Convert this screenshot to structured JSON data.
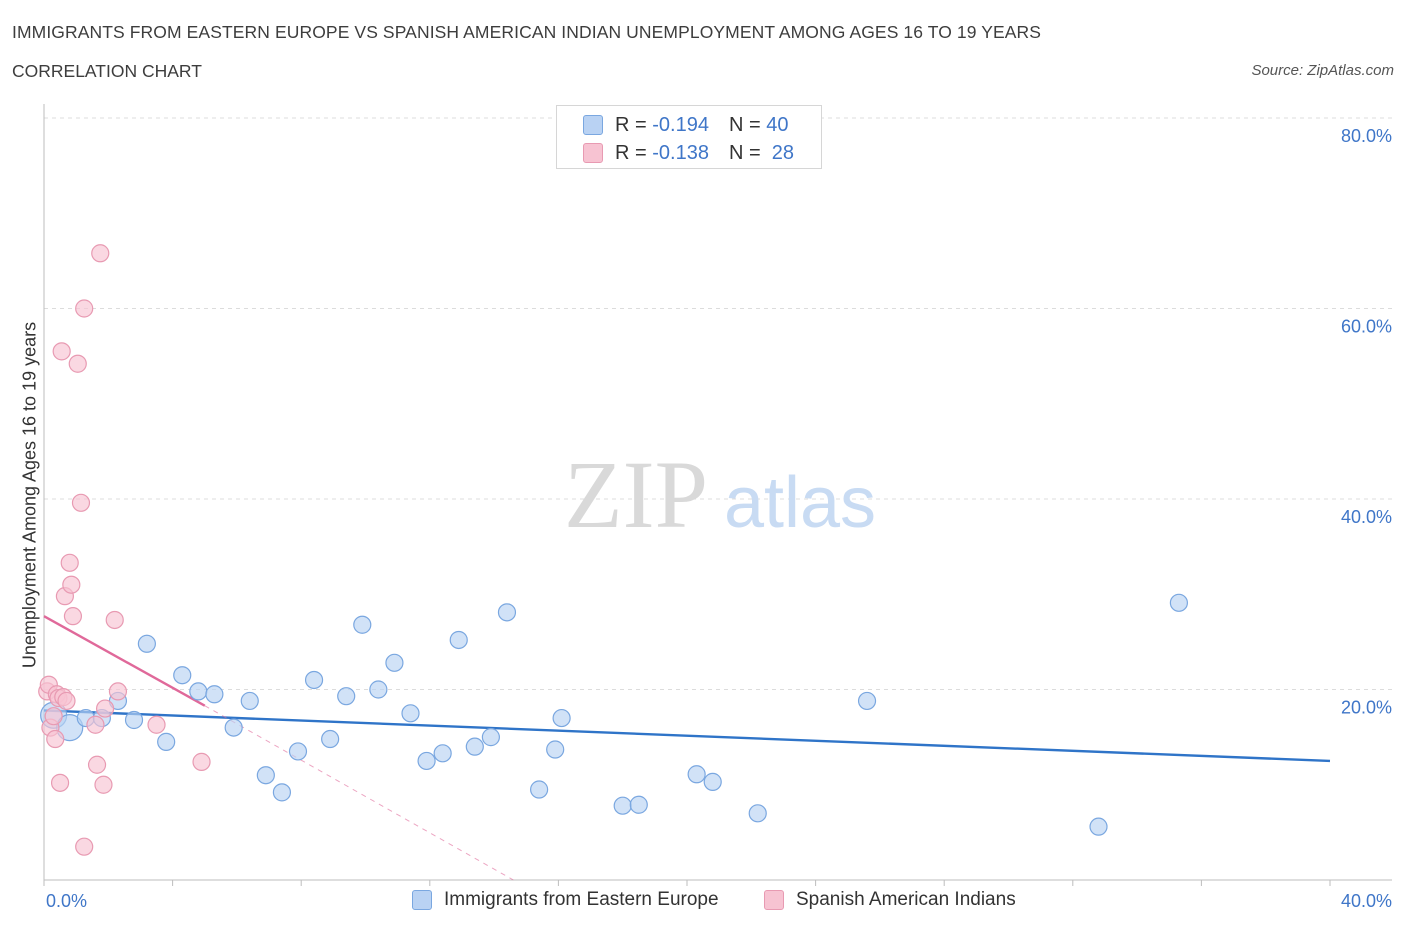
{
  "header": {
    "title": "IMMIGRANTS FROM EASTERN EUROPE VS SPANISH AMERICAN INDIAN UNEMPLOYMENT AMONG AGES 16 TO 19 YEARS",
    "subtitle": "CORRELATION CHART",
    "source": "Source: ZipAtlas.com"
  },
  "watermark": {
    "zip": "ZIP",
    "atlas": "atlas"
  },
  "legend": {
    "r_label": "R =",
    "n_label": "N =",
    "series1": {
      "r": "-0.194",
      "n": "40"
    },
    "series2": {
      "r": "-0.138",
      "n": "28"
    }
  },
  "colors": {
    "blue_fill": "#b9d2f3",
    "blue_stroke": "#7aa7e0",
    "blue_line": "#2f74c8",
    "pink_fill": "#f7c3d2",
    "pink_stroke": "#e89ab2",
    "pink_line": "#e0699a",
    "grid": "#dcdcdc",
    "axis_text": "#3f76c8"
  },
  "chart_data": {
    "type": "scatter",
    "title": "Immigrants from Eastern Europe vs Spanish American Indian Unemployment Among Ages 16 to 19 years",
    "xlabel": "",
    "ylabel": "Unemployment Among Ages 16 to 19 years",
    "xlim": [
      0,
      40
    ],
    "ylim": [
      0,
      80
    ],
    "x_tick_labels": [
      "0.0%",
      "40.0%"
    ],
    "y_ticks": [
      20,
      40,
      60,
      80
    ],
    "y_tick_labels": [
      "20.0%",
      "40.0%",
      "60.0%",
      "80.0%"
    ],
    "grid": true,
    "legend_position": "top-center",
    "series": [
      {
        "name": "Immigrants from Eastern Europe",
        "points": [
          {
            "x": 0.3,
            "y": 17.3,
            "big": true
          },
          {
            "x": 0.8,
            "y": 16.0,
            "big": true
          },
          {
            "x": 1.3,
            "y": 17.0
          },
          {
            "x": 1.8,
            "y": 17.0
          },
          {
            "x": 2.3,
            "y": 18.8
          },
          {
            "x": 2.8,
            "y": 16.8
          },
          {
            "x": 3.2,
            "y": 24.8
          },
          {
            "x": 3.8,
            "y": 14.5
          },
          {
            "x": 4.3,
            "y": 21.5
          },
          {
            "x": 4.8,
            "y": 19.8
          },
          {
            "x": 5.3,
            "y": 19.5
          },
          {
            "x": 5.9,
            "y": 16.0
          },
          {
            "x": 6.4,
            "y": 18.8
          },
          {
            "x": 6.9,
            "y": 11.0
          },
          {
            "x": 7.4,
            "y": 9.2
          },
          {
            "x": 7.9,
            "y": 13.5
          },
          {
            "x": 8.4,
            "y": 21.0
          },
          {
            "x": 8.9,
            "y": 14.8
          },
          {
            "x": 9.4,
            "y": 19.3
          },
          {
            "x": 9.9,
            "y": 26.8
          },
          {
            "x": 10.4,
            "y": 20.0
          },
          {
            "x": 10.9,
            "y": 22.8
          },
          {
            "x": 11.4,
            "y": 17.5
          },
          {
            "x": 11.9,
            "y": 12.5
          },
          {
            "x": 12.4,
            "y": 13.3
          },
          {
            "x": 12.9,
            "y": 25.2
          },
          {
            "x": 13.4,
            "y": 14.0
          },
          {
            "x": 13.9,
            "y": 15.0
          },
          {
            "x": 14.4,
            "y": 28.1
          },
          {
            "x": 15.4,
            "y": 9.5
          },
          {
            "x": 15.9,
            "y": 13.7
          },
          {
            "x": 16.1,
            "y": 17.0
          },
          {
            "x": 18.0,
            "y": 7.8
          },
          {
            "x": 18.5,
            "y": 7.9
          },
          {
            "x": 20.3,
            "y": 11.1
          },
          {
            "x": 20.8,
            "y": 10.3
          },
          {
            "x": 22.2,
            "y": 7.0
          },
          {
            "x": 25.6,
            "y": 18.8
          },
          {
            "x": 32.8,
            "y": 5.6
          },
          {
            "x": 35.3,
            "y": 29.1
          }
        ]
      },
      {
        "name": "Spanish American Indians",
        "points": [
          {
            "x": 0.1,
            "y": 19.8
          },
          {
            "x": 0.15,
            "y": 20.5
          },
          {
            "x": 0.2,
            "y": 16.0
          },
          {
            "x": 0.3,
            "y": 17.2
          },
          {
            "x": 0.35,
            "y": 14.8
          },
          {
            "x": 0.4,
            "y": 19.5
          },
          {
            "x": 0.45,
            "y": 19.1
          },
          {
            "x": 0.5,
            "y": 10.2
          },
          {
            "x": 0.55,
            "y": 55.5
          },
          {
            "x": 0.6,
            "y": 19.2
          },
          {
            "x": 0.65,
            "y": 29.8
          },
          {
            "x": 0.7,
            "y": 18.8
          },
          {
            "x": 0.8,
            "y": 33.3
          },
          {
            "x": 0.85,
            "y": 31.0
          },
          {
            "x": 0.9,
            "y": 27.7
          },
          {
            "x": 1.05,
            "y": 54.2
          },
          {
            "x": 1.15,
            "y": 39.6
          },
          {
            "x": 1.25,
            "y": 60.0
          },
          {
            "x": 1.25,
            "y": 3.5
          },
          {
            "x": 1.6,
            "y": 16.3
          },
          {
            "x": 1.65,
            "y": 12.1
          },
          {
            "x": 1.75,
            "y": 65.8
          },
          {
            "x": 1.85,
            "y": 10.0
          },
          {
            "x": 1.9,
            "y": 18.0
          },
          {
            "x": 2.2,
            "y": 27.3
          },
          {
            "x": 2.3,
            "y": 19.8
          },
          {
            "x": 3.5,
            "y": 16.3
          },
          {
            "x": 4.9,
            "y": 12.4
          }
        ]
      }
    ],
    "trend_lines": [
      {
        "series": "Immigrants from Eastern Europe",
        "x0": 0.0,
        "y0": 17.8,
        "x1": 40.0,
        "y1": 12.5,
        "style": "solid"
      },
      {
        "series": "Spanish American Indians",
        "x0": 0.0,
        "y0": 27.7,
        "x1": 5.0,
        "y1": 18.3,
        "style": "solid"
      },
      {
        "series": "Spanish American Indians",
        "x0": 5.0,
        "y0": 18.3,
        "x1": 14.6,
        "y1": 0.0,
        "style": "dashed"
      }
    ]
  },
  "bottom_legend": {
    "series1": "Immigrants from Eastern Europe",
    "series2": "Spanish American Indians"
  }
}
